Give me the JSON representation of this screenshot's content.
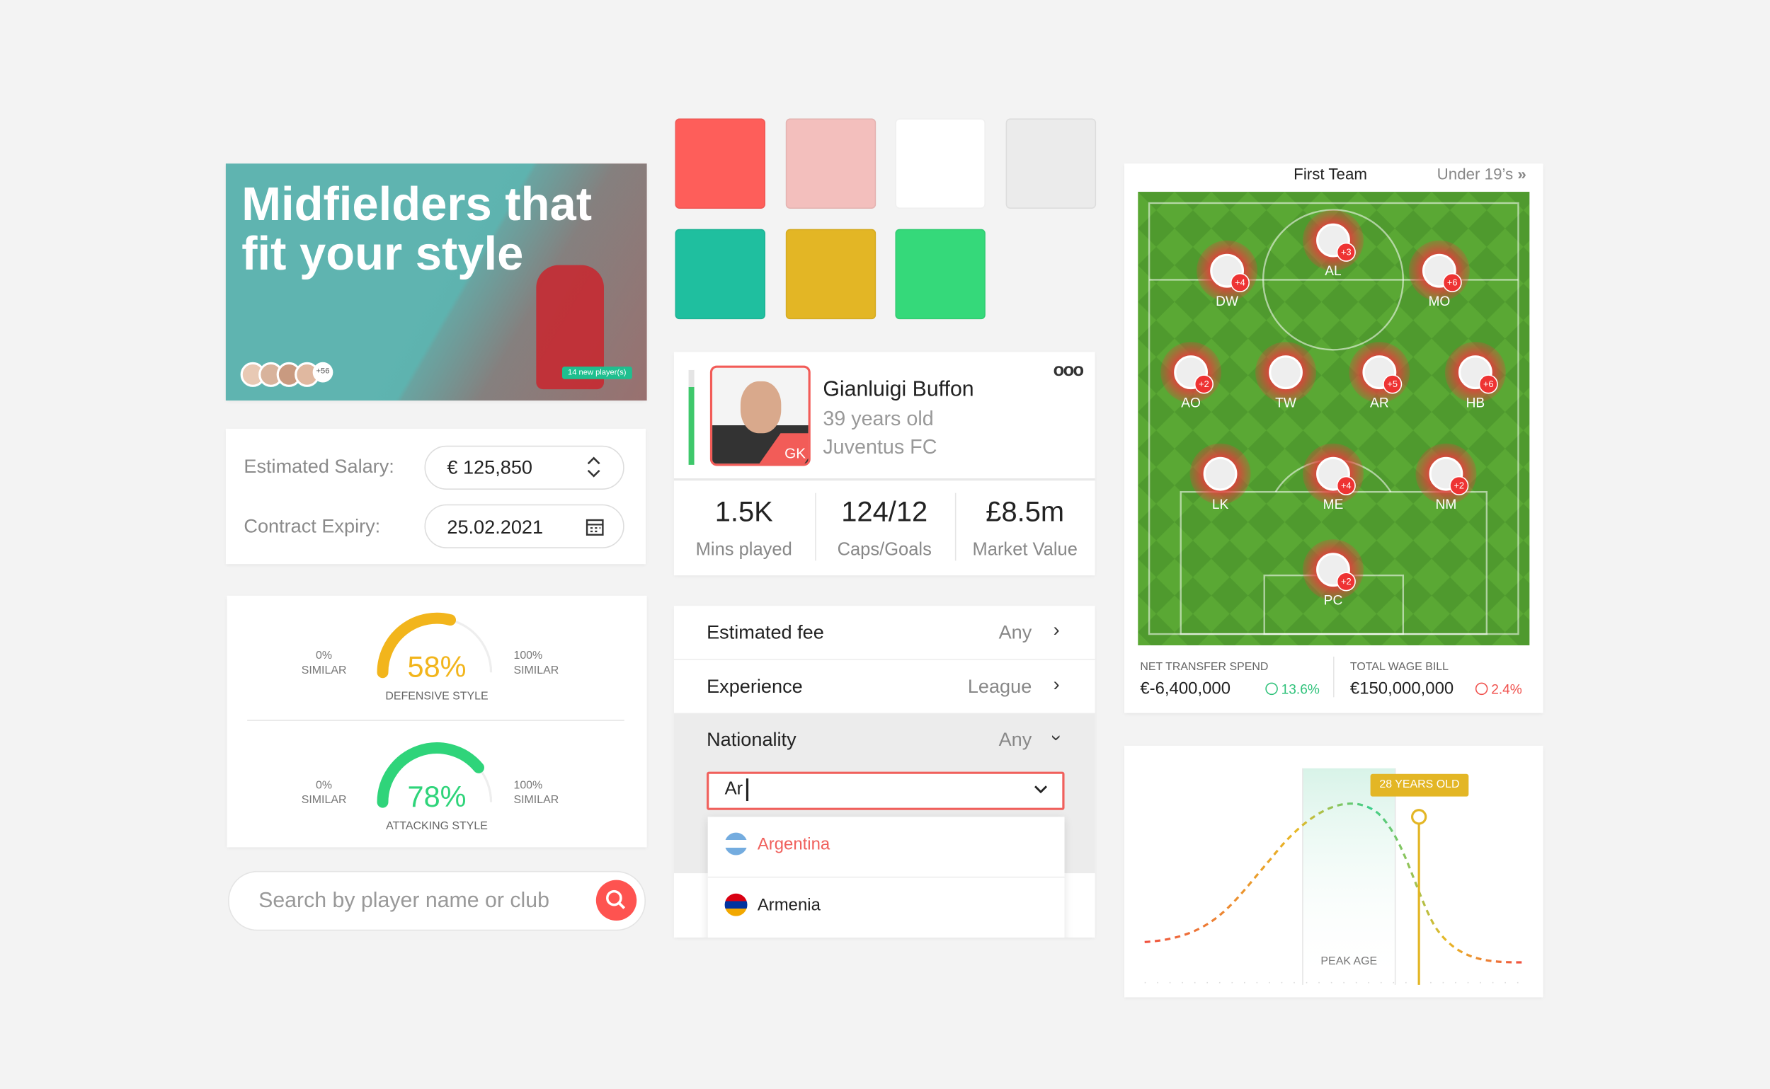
{
  "hero": {
    "title": "Midfielders that fit your style",
    "more": "+56",
    "badge": "14 new player(s)"
  },
  "swatches": [
    "#fe5e5a",
    "#f3bfbd",
    "#ffffff",
    "#ebebeb",
    "#1fbf9f",
    "#e3b625",
    "#35d97a"
  ],
  "form": {
    "salary_label": "Estimated Salary:",
    "salary": "€ 125,850",
    "expiry_label": "Contract Expiry:",
    "expiry": "25.02.2021"
  },
  "gauges": [
    {
      "min": "0%",
      "min_caption": "SIMILAR",
      "max": "100%",
      "max_caption": "SIMILAR",
      "value": 58,
      "value_label": "58%",
      "label": "DEFENSIVE STYLE",
      "color": "#f2b51c"
    },
    {
      "min": "0%",
      "min_caption": "SIMILAR",
      "max": "100%",
      "max_caption": "SIMILAR",
      "value": 78,
      "value_label": "78%",
      "label": "ATTACKING STYLE",
      "color": "#2fd47a"
    }
  ],
  "search": {
    "placeholder": "Search by player name or club"
  },
  "player": {
    "name": "Gianluigi Buffon",
    "age": "39 years old",
    "club": "Juventus FC",
    "position": "GK",
    "stats": [
      {
        "value": "1.5K",
        "label": "Mins played"
      },
      {
        "value": "124/12",
        "label": "Caps/Goals"
      },
      {
        "value": "£8.5m",
        "label": "Market Value"
      }
    ]
  },
  "filters": {
    "rows": [
      {
        "label": "Estimated fee",
        "value": "Any"
      },
      {
        "label": "Experience",
        "value": "League"
      },
      {
        "label": "Nationality",
        "value": "Any"
      }
    ],
    "input": "Ar",
    "options": [
      "Argentina",
      "Armenia"
    ]
  },
  "team": {
    "tabs": [
      "First Team",
      "Under 19’s"
    ],
    "players": [
      {
        "code": "DW",
        "badge": "+4"
      },
      {
        "code": "AL",
        "badge": "+3"
      },
      {
        "code": "MO",
        "badge": "+6"
      },
      {
        "code": "AO",
        "badge": "+2"
      },
      {
        "code": "TW",
        "badge": null
      },
      {
        "code": "AR",
        "badge": "+5"
      },
      {
        "code": "HB",
        "badge": "+6"
      },
      {
        "code": "LK",
        "badge": null
      },
      {
        "code": "ME",
        "badge": "+4"
      },
      {
        "code": "NM",
        "badge": "+2"
      },
      {
        "code": "PC",
        "badge": "+2"
      }
    ],
    "summary": [
      {
        "label": "NET TRANSFER SPEND",
        "value": "€-6,400,000",
        "change": "13.6%",
        "color": "#2fc27a"
      },
      {
        "label": "TOTAL WAGE BILL",
        "value": "€150,000,000",
        "change": "2.4%",
        "color": "#f0514d"
      }
    ]
  },
  "age_chart": {
    "marker": "28 YEARS OLD",
    "band": "PEAK AGE"
  }
}
